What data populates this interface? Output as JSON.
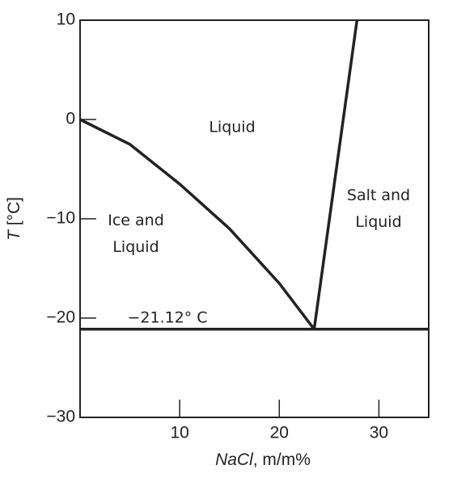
{
  "chart_data": {
    "type": "line",
    "x_label": [
      "NaCl",
      ", m/m%"
    ],
    "y_label": [
      "T",
      " [°C]"
    ],
    "xlim": [
      0,
      35
    ],
    "ylim": [
      -30,
      10
    ],
    "xticks": [
      10,
      20,
      30
    ],
    "yticks": [
      10,
      0,
      {
        "value": -10,
        "label": "−10"
      },
      {
        "value": -20,
        "label": "−20"
      },
      {
        "value": -30,
        "label": "−30"
      }
    ],
    "series": [
      {
        "color": "#222222",
        "x": [
          0,
          5,
          10,
          15,
          20,
          23.5
        ],
        "values": [
          0,
          -2.5,
          -6.5,
          -11,
          -16.5,
          -21.12
        ]
      },
      {
        "color": "#222222",
        "x": [
          23.5,
          27.8
        ],
        "values": [
          -21.12,
          10
        ]
      },
      {
        "color": "#222222",
        "x": [
          0,
          35
        ],
        "values": [
          -21.12,
          -21.12
        ]
      }
    ],
    "annotations": [
      [
        "Liquid"
      ],
      [
        "Ice and",
        "Liquid"
      ],
      [
        "Salt and",
        "Liquid"
      ],
      [
        "−21.12° C"
      ]
    ]
  }
}
